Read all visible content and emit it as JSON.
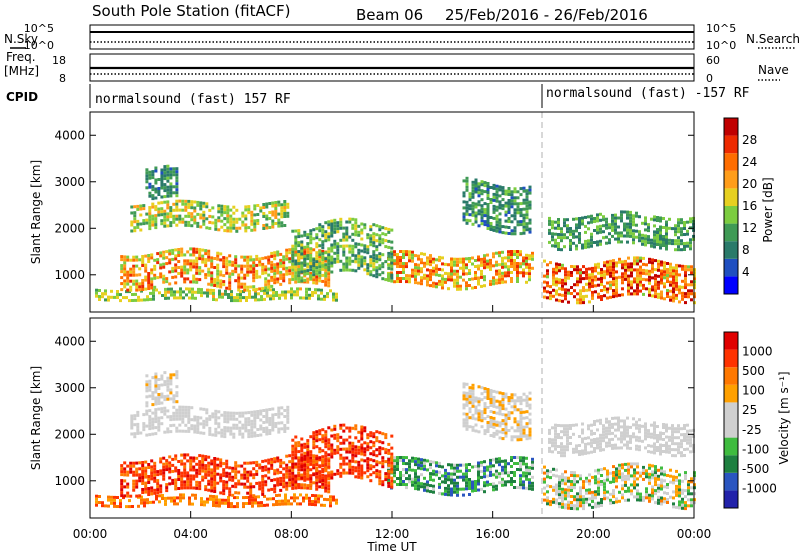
{
  "header": {
    "station": "South Pole Station (fitACF)",
    "beam": "Beam 06",
    "date_range": "25/Feb/2016 - 26/Feb/2016"
  },
  "top_panels": {
    "nsky_label": "N.Sky",
    "nsearch_label": "N.Search",
    "noise_ticks": [
      "10^5",
      "10^0"
    ],
    "freq_label_1": "Freq.",
    "freq_label_2": "[MHz]",
    "freq_ticks": [
      "18",
      "8"
    ],
    "nave_label": "Nave",
    "nave_ticks": [
      "60",
      "0"
    ],
    "cpid_label": "CPID",
    "cpid_segments": [
      {
        "text": "normalsound (fast) 157 RF",
        "start_hour": 0
      },
      {
        "text": "normalsound (fast) -157 RF",
        "start_hour": 18
      }
    ]
  },
  "colors": {
    "power_scale": [
      "#0000ff",
      "#1f4fc0",
      "#2a7a6a",
      "#3f9a55",
      "#7ccc40",
      "#e6d020",
      "#ff9d1a",
      "#ff6d00",
      "#ee2a00",
      "#c00000"
    ],
    "velocity_scale": [
      "#2222aa",
      "#2a55c0",
      "#1e8040",
      "#3fbc3f",
      "#cfcfcf",
      "#cfcfcf",
      "#ffa000",
      "#ff7800",
      "#ff3300",
      "#e00000"
    ],
    "grid_dash": "#b0b0b0"
  },
  "chart_data": [
    {
      "type": "heatmap",
      "name": "Power",
      "ylabel": "Slant Range [km]",
      "ylim": [
        200,
        4500
      ],
      "yticks": [
        1000,
        2000,
        3000,
        4000
      ],
      "xlim_hours": [
        0,
        24
      ],
      "colorbar": {
        "label": "Power [dB]",
        "range": [
          0,
          32
        ],
        "ticks": [
          "4",
          "8",
          "12",
          "16",
          "20",
          "24",
          "28"
        ]
      },
      "echo_regions": [
        {
          "t0": 0.2,
          "t1": 9.8,
          "r0": 450,
          "r1": 700,
          "v0": 9,
          "v1": 18
        },
        {
          "t0": 1.2,
          "t1": 9.5,
          "r0": 750,
          "r1": 1500,
          "v0": 12,
          "v1": 26
        },
        {
          "t0": 1.6,
          "t1": 7.8,
          "r0": 2000,
          "r1": 2550,
          "v0": 8,
          "v1": 20
        },
        {
          "t0": 2.2,
          "t1": 3.4,
          "r0": 2650,
          "r1": 3300,
          "v0": 4,
          "v1": 12
        },
        {
          "t0": 11.8,
          "t1": 17.6,
          "r0": 750,
          "r1": 1450,
          "v0": 12,
          "v1": 26
        },
        {
          "t0": 14.8,
          "t1": 17.5,
          "r0": 2000,
          "r1": 3000,
          "v0": 4,
          "v1": 13
        },
        {
          "t0": 18.0,
          "t1": 24.0,
          "r0": 500,
          "r1": 1300,
          "v0": 14,
          "v1": 30
        },
        {
          "t0": 18.2,
          "t1": 24.0,
          "r0": 1600,
          "r1": 2300,
          "v0": 5,
          "v1": 14
        },
        {
          "t0": 8.0,
          "t1": 12.0,
          "r0": 1000,
          "r1": 2100,
          "v0": 6,
          "v1": 16
        }
      ]
    },
    {
      "type": "heatmap",
      "name": "Velocity",
      "ylabel": "Slant Range [km]",
      "ylim": [
        200,
        4500
      ],
      "yticks": [
        1000,
        2000,
        3000,
        4000
      ],
      "xlim_hours": [
        0,
        24
      ],
      "xticks": [
        "00:00",
        "04:00",
        "08:00",
        "12:00",
        "16:00",
        "20:00",
        "00:00"
      ],
      "xlabel": "Time UT",
      "colorbar": {
        "label": "Velocity [m s⁻¹]",
        "ticks": [
          "1000",
          "500",
          "100",
          "25",
          "-25",
          "-100",
          "-500",
          "-1000"
        ]
      },
      "echo_regions": [
        {
          "t0": 0.2,
          "t1": 9.8,
          "r0": 450,
          "r1": 700,
          "v0": 6,
          "v1": 8
        },
        {
          "t0": 1.2,
          "t1": 9.5,
          "r0": 750,
          "r1": 1500,
          "v0": 7,
          "v1": 9
        },
        {
          "t0": 1.6,
          "t1": 7.8,
          "r0": 2000,
          "r1": 2550,
          "v0": 4,
          "v1": 5
        },
        {
          "t0": 2.2,
          "t1": 3.4,
          "r0": 2650,
          "r1": 3300,
          "v0": 4,
          "v1": 6
        },
        {
          "t0": 11.8,
          "t1": 17.6,
          "r0": 750,
          "r1": 1450,
          "v0": 1,
          "v1": 4
        },
        {
          "t0": 14.8,
          "t1": 17.5,
          "r0": 2000,
          "r1": 3000,
          "v0": 4,
          "v1": 6
        },
        {
          "t0": 18.0,
          "t1": 24.0,
          "r0": 500,
          "r1": 1300,
          "v0": 2,
          "v1": 7
        },
        {
          "t0": 18.2,
          "t1": 24.0,
          "r0": 1600,
          "r1": 2300,
          "v0": 4,
          "v1": 5
        },
        {
          "t0": 8.0,
          "t1": 12.0,
          "r0": 1000,
          "r1": 2100,
          "v0": 7,
          "v1": 9
        }
      ]
    }
  ]
}
